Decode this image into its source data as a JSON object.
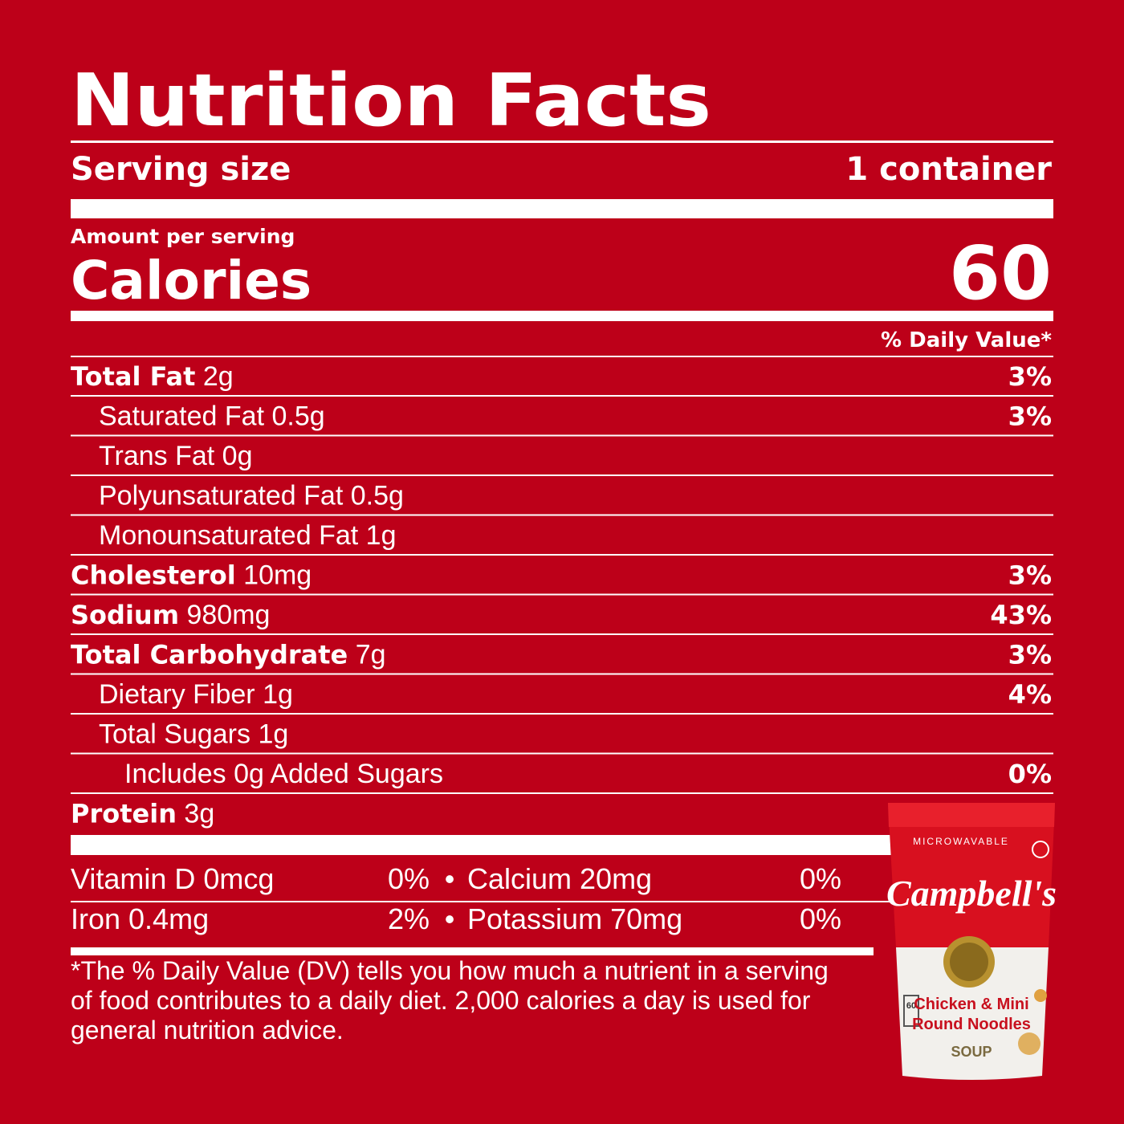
{
  "title": "Nutrition Facts",
  "serving": {
    "label": "Serving size",
    "value": "1 container"
  },
  "amount_per_serving": "Amount per serving",
  "calories": {
    "label": "Calories",
    "value": "60"
  },
  "dv_header": "% Daily Value*",
  "nutrients": [
    {
      "name": "Total Fat",
      "amount": "2g",
      "dv": "3%",
      "level": 0
    },
    {
      "name": "Saturated Fat",
      "amount": "0.5g",
      "dv": "3%",
      "level": 1
    },
    {
      "name": "Trans Fat",
      "amount": "0g",
      "level": 1
    },
    {
      "name": "Polyunsaturated Fat",
      "amount": "0.5g",
      "level": 1
    },
    {
      "name": "Monounsaturated Fat",
      "amount": "1g",
      "level": 1
    },
    {
      "name": "Cholesterol",
      "amount": "10mg",
      "dv": "3%",
      "level": 0
    },
    {
      "name": "Sodium",
      "amount": "980mg",
      "dv": "43%",
      "level": 0
    },
    {
      "name": "Total Carbohydrate",
      "amount": "7g",
      "dv": "3%",
      "level": 0
    },
    {
      "name": "Dietary Fiber",
      "amount": "1g",
      "dv": "4%",
      "level": 1
    },
    {
      "name": "Total Sugars",
      "amount": "1g",
      "level": 1
    },
    {
      "name": "Includes 0g Added Sugars",
      "dv": "0%",
      "level": 2
    },
    {
      "name": "Protein",
      "amount": "3g",
      "level": 0
    }
  ],
  "separator": "•",
  "vitamins": [
    [
      {
        "name": "Vitamin D 0mcg",
        "dv": "0%"
      },
      {
        "name": "Calcium 20mg",
        "dv": "0%"
      }
    ],
    [
      {
        "name": "Iron 0.4mg",
        "dv": "2%"
      },
      {
        "name": "Potassium 70mg",
        "dv": "0%"
      }
    ]
  ],
  "footnote": [
    "*The % Daily Value (DV) tells you how much a nutrient in a serving",
    "of food contributes to a daily diet. 2,000 calories a day is used for",
    "general nutrition advice."
  ],
  "product": {
    "tag": "MICROWAVABLE",
    "brand": "Campbell's",
    "badge": "60",
    "name": [
      "Chicken & Mini",
      "Round Noodles"
    ],
    "kind": "SOUP"
  }
}
